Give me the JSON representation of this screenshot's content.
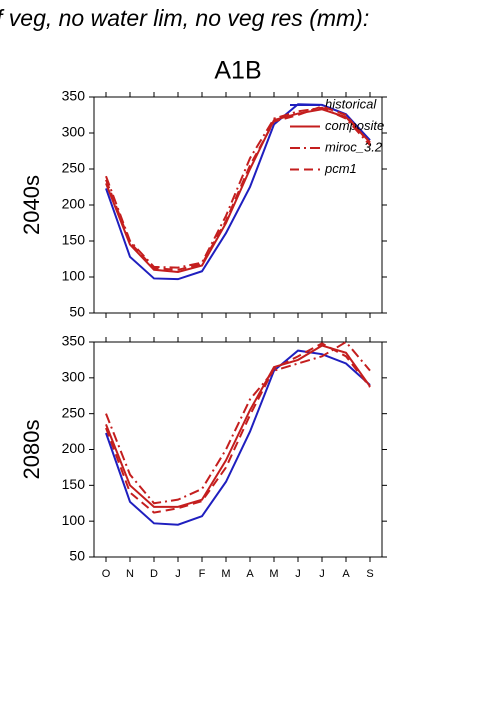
{
  "chart_data": [
    {
      "type": "line",
      "title": "f veg, no water lim, no veg res (mm):",
      "subtitle": "A1B",
      "ylabel": "2040s",
      "ylim": [
        50,
        350
      ],
      "yticks": [
        50,
        100,
        150,
        200,
        250,
        300,
        350
      ],
      "series": [
        {
          "name": "historical",
          "color": "#1f1fbf",
          "dash": "solid",
          "values": [
            223,
            128,
            98,
            97,
            108,
            161,
            225,
            312,
            340,
            339,
            326,
            290
          ]
        },
        {
          "name": "composite",
          "color": "#c41e1e",
          "dash": "solid",
          "values": [
            230,
            145,
            110,
            107,
            116,
            175,
            250,
            318,
            327,
            333,
            322,
            287
          ]
        },
        {
          "name": "miroc_3.2",
          "color": "#c41e1e",
          "dash": "dashdot",
          "values": [
            240,
            150,
            114,
            113,
            120,
            185,
            265,
            320,
            330,
            335,
            320,
            283
          ]
        },
        {
          "name": "pcm1",
          "color": "#c41e1e",
          "dash": "dashed",
          "values": [
            235,
            148,
            112,
            110,
            118,
            178,
            255,
            316,
            325,
            337,
            325,
            285
          ]
        }
      ]
    },
    {
      "type": "line",
      "ylabel": "2080s",
      "categories": [
        "O",
        "N",
        "D",
        "J",
        "F",
        "M",
        "A",
        "M",
        "J",
        "J",
        "A",
        "S"
      ],
      "ylim": [
        50,
        350
      ],
      "yticks": [
        50,
        100,
        150,
        200,
        250,
        300,
        350
      ],
      "series": [
        {
          "color": "#1f1fbf",
          "dash": "solid",
          "values": [
            223,
            127,
            97,
            95,
            107,
            155,
            225,
            310,
            338,
            333,
            320,
            290
          ]
        },
        {
          "color": "#c41e1e",
          "dash": "solid",
          "values": [
            235,
            150,
            120,
            120,
            130,
            185,
            255,
            315,
            325,
            345,
            335,
            288
          ]
        },
        {
          "color": "#c41e1e",
          "dash": "dashdot",
          "values": [
            250,
            165,
            125,
            130,
            145,
            200,
            270,
            310,
            320,
            330,
            350,
            310
          ]
        },
        {
          "color": "#c41e1e",
          "dash": "dashed",
          "values": [
            230,
            140,
            112,
            118,
            128,
            175,
            248,
            313,
            330,
            348,
            330,
            287
          ]
        }
      ]
    }
  ]
}
